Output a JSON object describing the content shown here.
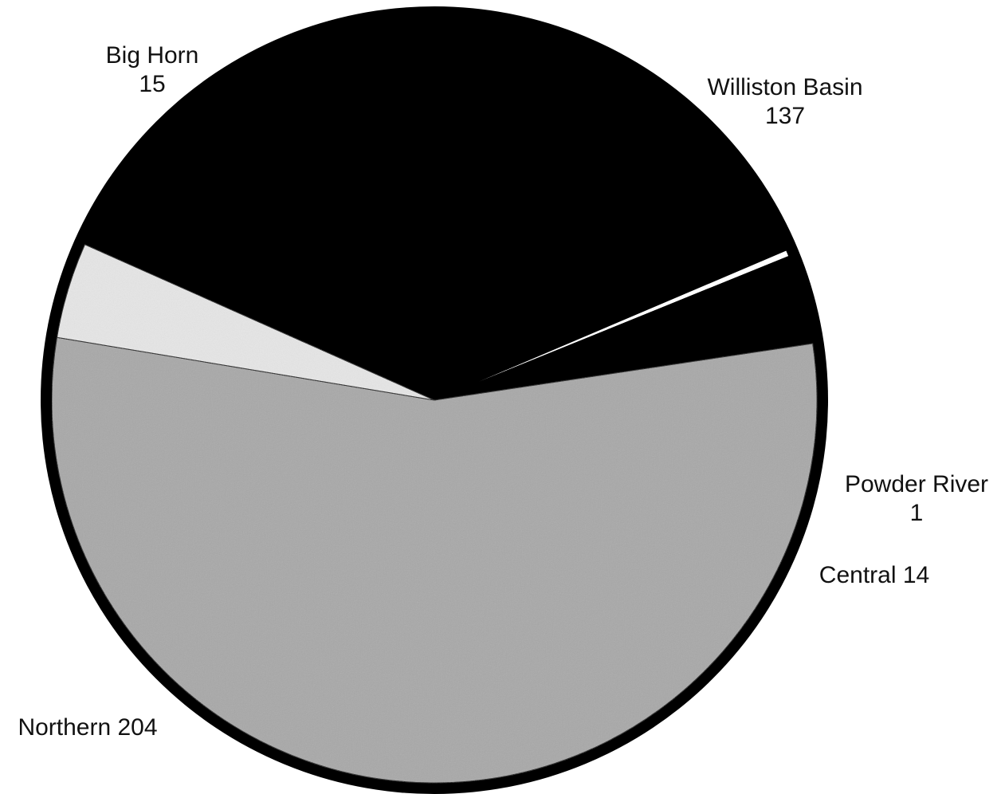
{
  "chart_data": {
    "type": "pie",
    "title": "",
    "slices": [
      {
        "name": "Williston Basin",
        "value": 137,
        "color": "#000000",
        "label_lines": [
          "Williston Basin",
          "137"
        ]
      },
      {
        "name": "Powder River",
        "value": 1,
        "color": "#ffffff",
        "label_lines": [
          "Powder River",
          "1"
        ]
      },
      {
        "name": "Central",
        "value": 14,
        "color": "#000000",
        "label_lines": [
          "Central  14"
        ]
      },
      {
        "name": "Northern",
        "value": 204,
        "color": "#a8a8a8",
        "label_lines": [
          "Northern  204"
        ]
      },
      {
        "name": "Big Horn",
        "value": 15,
        "color": "#e6e6e6",
        "label_lines": [
          "Big Horn",
          "15"
        ]
      }
    ],
    "legend": "none",
    "outline_color": "#000000"
  }
}
